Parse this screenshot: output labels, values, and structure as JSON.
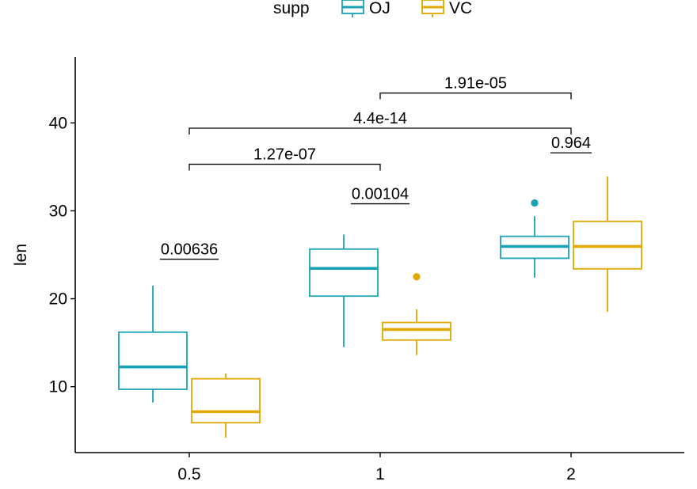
{
  "legend": {
    "title": "supp",
    "items": [
      {
        "label": "OJ",
        "color": "#1BA3B5"
      },
      {
        "label": "VC",
        "color": "#E1A800"
      }
    ]
  },
  "chart_data": {
    "type": "box",
    "xlabel": "",
    "ylabel": "len",
    "categories": [
      "0.5",
      "1",
      "2"
    ],
    "yticks": [
      10,
      20,
      30,
      40
    ],
    "ylim": [
      2.5,
      47.5
    ],
    "grid": false,
    "legend_position": "top",
    "series": [
      {
        "name": "OJ",
        "color": "#1BA3B5",
        "boxes": [
          {
            "category": "0.5",
            "min": 8.2,
            "q1": 9.7,
            "median": 12.25,
            "q3": 16.2,
            "max": 21.5,
            "outliers": []
          },
          {
            "category": "1",
            "min": 14.5,
            "q1": 20.3,
            "median": 23.45,
            "q3": 25.65,
            "max": 27.3,
            "outliers": []
          },
          {
            "category": "2",
            "min": 22.4,
            "q1": 24.6,
            "median": 25.95,
            "q3": 27.1,
            "max": 29.4,
            "outliers": [
              30.9
            ]
          }
        ]
      },
      {
        "name": "VC",
        "color": "#E1A800",
        "boxes": [
          {
            "category": "0.5",
            "min": 4.2,
            "q1": 5.9,
            "median": 7.15,
            "q3": 10.9,
            "max": 11.5,
            "outliers": []
          },
          {
            "category": "1",
            "min": 13.6,
            "q1": 15.3,
            "median": 16.5,
            "q3": 17.3,
            "max": 18.8,
            "outliers": [
              22.5
            ]
          },
          {
            "category": "2",
            "min": 18.5,
            "q1": 23.4,
            "median": 25.95,
            "q3": 28.8,
            "max": 33.9,
            "outliers": []
          }
        ]
      }
    ],
    "annotations": [
      {
        "label": "0.00636",
        "type": "underline",
        "category": "0.5",
        "y": 24.5
      },
      {
        "label": "0.00104",
        "type": "underline",
        "category": "1",
        "y": 30.8
      },
      {
        "label": "0.964",
        "type": "underline",
        "category": "2",
        "y": 36.6
      },
      {
        "label": "1.27e-07",
        "type": "bracket",
        "from": "0.5",
        "to": "1",
        "y": 35.3
      },
      {
        "label": "4.4e-14",
        "type": "bracket",
        "from": "0.5",
        "to": "2",
        "y": 39.4
      },
      {
        "label": "1.91e-05",
        "type": "bracket",
        "from": "1",
        "to": "2",
        "y": 43.4
      }
    ]
  }
}
